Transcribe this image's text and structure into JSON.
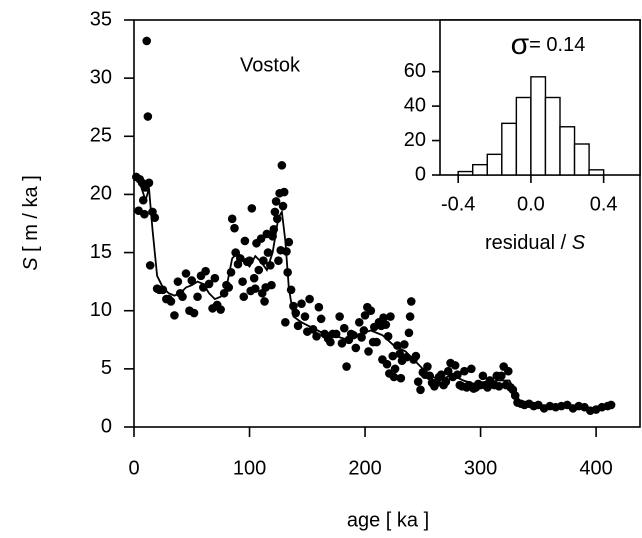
{
  "chart_data": [
    {
      "type": "scatter",
      "annotation": "Vostok",
      "xlabel": "age   [ ka ]",
      "ylabel_symbol": "S",
      "ylabel_unit": "  [ m / ka ]",
      "color": "#000000",
      "xlim": [
        0,
        438
      ],
      "ylim": [
        0,
        35
      ],
      "xticks": [
        0,
        100,
        200,
        300,
        400
      ],
      "yticks": [
        0,
        5,
        10,
        15,
        20,
        25,
        30,
        35
      ],
      "x": [
        2,
        4,
        5,
        7,
        8,
        9,
        10,
        11,
        12,
        13,
        14,
        16,
        18,
        20,
        22,
        25,
        28,
        30,
        32,
        35,
        38,
        40,
        42,
        45,
        48,
        50,
        52,
        55,
        58,
        60,
        62,
        65,
        68,
        70,
        72,
        75,
        78,
        80,
        82,
        84,
        85,
        87,
        88,
        90,
        92,
        94,
        95,
        96,
        98,
        100,
        101,
        102,
        104,
        105,
        106,
        108,
        110,
        111,
        112,
        113,
        114,
        115,
        116,
        118,
        119,
        120,
        121,
        122,
        123,
        124,
        125,
        126,
        127,
        128,
        129,
        130,
        131,
        132,
        133,
        134,
        136,
        138,
        140,
        142,
        145,
        148,
        150,
        152,
        155,
        158,
        160,
        162,
        165,
        168,
        170,
        172,
        175,
        178,
        180,
        182,
        184,
        186,
        188,
        190,
        192,
        195,
        197,
        199,
        200,
        202,
        203,
        205,
        207,
        208,
        210,
        212,
        214,
        215,
        216,
        218,
        219,
        220,
        221,
        222,
        224,
        225,
        226,
        228,
        230,
        231,
        232,
        234,
        236,
        238,
        239,
        240,
        242,
        244,
        246,
        248,
        250,
        252,
        254,
        256,
        258,
        260,
        262,
        264,
        266,
        268,
        270,
        272,
        274,
        276,
        278,
        280,
        282,
        284,
        286,
        288,
        290,
        292,
        294,
        296,
        298,
        300,
        302,
        304,
        306,
        308,
        310,
        312,
        314,
        316,
        318,
        320,
        322,
        324,
        326,
        328,
        330,
        332,
        335,
        338,
        342,
        346,
        350,
        355,
        360,
        365,
        370,
        375,
        380,
        385,
        390,
        395,
        400,
        405,
        410,
        413
      ],
      "values": [
        21.5,
        18.6,
        21.3,
        21,
        19.5,
        18.3,
        20.6,
        33.2,
        26.7,
        21,
        13.9,
        18.5,
        18,
        11.9,
        11.8,
        11.8,
        11,
        11,
        10.8,
        9.6,
        12.5,
        11.5,
        11.2,
        13.2,
        10,
        12.6,
        9.8,
        11.2,
        13,
        12,
        13.4,
        12.3,
        10.2,
        12.8,
        10.5,
        10.1,
        11.5,
        12.2,
        12,
        13.3,
        17.9,
        17.1,
        15,
        14,
        14.5,
        12.5,
        11.2,
        16,
        14.2,
        14.3,
        11.7,
        18.8,
        12.8,
        11.9,
        15.8,
        13.5,
        16.2,
        11.5,
        14.3,
        10.8,
        12,
        16.6,
        15,
        13.9,
        12.2,
        16.4,
        17,
        18.5,
        19.4,
        17.9,
        14.3,
        20.1,
        15.2,
        22.5,
        19,
        20.2,
        9,
        15.1,
        13.3,
        15.9,
        11.8,
        10.4,
        9.8,
        8.7,
        10.6,
        9.5,
        8.2,
        11,
        8.4,
        7.8,
        10.3,
        9.3,
        8,
        7.6,
        7.3,
        8,
        8,
        9.5,
        7.2,
        8.5,
        5.2,
        7.5,
        8,
        7.9,
        6.8,
        9,
        7.7,
        8.3,
        9.6,
        10.3,
        6.5,
        10,
        7.3,
        8.6,
        7.3,
        9,
        8.7,
        5.8,
        9.4,
        8.8,
        5.4,
        7.8,
        4.6,
        9.5,
        6.1,
        4.3,
        5,
        7,
        6.3,
        4.2,
        5.7,
        7.1,
        6,
        8.1,
        9.5,
        10.8,
        5.8,
        6.1,
        3.9,
        3.2,
        4.7,
        4.5,
        5.2,
        4.4,
        3.8,
        3.5,
        3.8,
        4.3,
        4.5,
        3.6,
        3.9,
        4.8,
        5.5,
        4.3,
        5.3,
        4.5,
        3.6,
        3.5,
        4.8,
        3.4,
        3.6,
        5,
        3.3,
        3.4,
        3.7,
        3.6,
        4.4,
        3.6,
        3.4,
        4,
        3.7,
        3.6,
        4.4,
        3.5,
        4.4,
        5.2,
        3.6,
        4.8,
        3.4,
        3.2,
        2.7,
        2.1,
        2,
        1.9,
        2,
        1.8,
        1.9,
        1.6,
        1.8,
        1.7,
        1.8,
        1.9,
        1.6,
        1.8,
        1.7,
        1.4,
        1.5,
        1.7,
        1.8,
        1.9
      ],
      "line": {
        "x": [
          0,
          5,
          10,
          13,
          16,
          20,
          25,
          30,
          35,
          40,
          45,
          50,
          55,
          60,
          65,
          70,
          75,
          80,
          85,
          90,
          95,
          100,
          105,
          110,
          115,
          120,
          125,
          128,
          131,
          134,
          138,
          145,
          155,
          165,
          175,
          185,
          195,
          205,
          215,
          225,
          235,
          245,
          255,
          265,
          275,
          285,
          295,
          305,
          315,
          325,
          335,
          345,
          360,
          380,
          400,
          415
        ],
        "values": [
          21.5,
          21,
          19.5,
          20.5,
          17,
          13,
          12,
          11.5,
          11.3,
          11.5,
          12,
          12.2,
          12.5,
          12.3,
          11.5,
          11,
          11.2,
          12,
          14.5,
          15,
          14.3,
          13.8,
          14.7,
          14.2,
          13.5,
          15,
          18,
          18.5,
          16,
          12,
          9.5,
          9,
          8.5,
          8,
          7.8,
          7.5,
          8,
          8.3,
          7.9,
          7,
          6.5,
          5.5,
          4.5,
          4,
          4.5,
          4,
          3.7,
          3.8,
          4,
          4,
          2,
          1.9,
          1.8,
          1.7,
          1.6,
          1.8
        ]
      }
    },
    {
      "type": "histogram",
      "annotation_symbol": "σ",
      "annotation_text": "= 0.14",
      "xlabel": "residual / ",
      "xlabel_symbol": "S",
      "color": "#ffffff",
      "xlim": [
        -0.5,
        0.6
      ],
      "ylim": [
        0,
        90
      ],
      "xticks": [
        -0.4,
        {
          "value": 0,
          "label": "0.0"
        },
        0.4
      ],
      "yticks": [
        0,
        20,
        40,
        60
      ],
      "bins": [
        -0.4,
        -0.32,
        -0.24,
        -0.16,
        -0.08,
        0,
        0.08,
        0.16,
        0.24,
        0.32,
        0.4
      ],
      "values": [
        2,
        6,
        12,
        30,
        45,
        57,
        45,
        28,
        18,
        3
      ]
    }
  ]
}
